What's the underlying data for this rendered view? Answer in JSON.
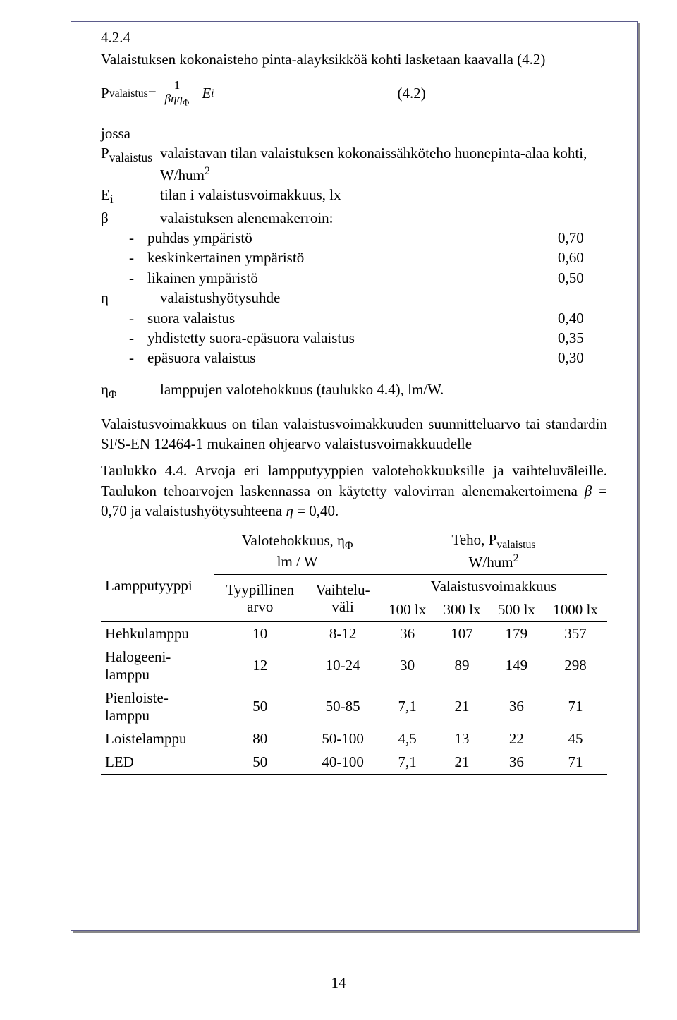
{
  "section_number": "4.2.4",
  "intro_line": "Valaistuksen kokonaisteho pinta-alayksikköä kohti lasketaan kaavalla (4.2)",
  "formula": {
    "lhs_label": "P",
    "lhs_sub": "valaistus",
    "eq": " = ",
    "frac_num": "1",
    "frac_den": "βηη",
    "frac_den_sub": "Φ",
    "rhs_sym": "E",
    "rhs_sub": "i",
    "eq_number": "(4.2)"
  },
  "defs": {
    "jossa": "jossa",
    "rows": [
      {
        "sym_html": "P<sub>valaistus</sub>",
        "desc": "valaistavan tilan valaistuksen kokonaissähköteho huonepinta-alaa kohti, W/hum",
        "sup": "2"
      },
      {
        "sym_html": "E<sub>i</sub>",
        "desc": "tilan i valaistusvoimakkuus, lx"
      },
      {
        "sym_html": "β",
        "desc": "valaistuksen alenemakerroin:"
      }
    ],
    "beta_items": [
      {
        "label": "puhdas ympäristö",
        "val": "0,70"
      },
      {
        "label": "keskinkertainen ympäristö",
        "val": "0,60"
      },
      {
        "label": "likainen ympäristö",
        "val": "0,50"
      }
    ],
    "eta_row": {
      "sym": "η",
      "desc": "valaistushyötysuhde"
    },
    "eta_items": [
      {
        "label": "suora valaistus",
        "val": "0,40"
      },
      {
        "label": "yhdistetty suora-epäsuora valaistus",
        "val": "0,35"
      },
      {
        "label": "epäsuora valaistus",
        "val": "0,30"
      }
    ]
  },
  "eta_phi": {
    "sym": "η",
    "sub": "Φ",
    "desc": "lamppujen valotehokkuus (taulukko 4.4), lm/W."
  },
  "para_voimakkuus": "Valaistusvoimakkuus on tilan valaistusvoimakkuuden suunnitteluarvo tai standardin SFS-EN 12464-1 mukainen ohjearvo valaistusvoimakkuudelle",
  "table_caption_a": "Taulukko 4.4. Arvoja eri lampputyyppien valotehokkuuksille ja vaihteluväleille. Taulukon tehoarvojen laskennassa on käytetty valovirran alenemakertoimena ",
  "table_caption_b": " = 0,70 ja valaistushyötysuhteena ",
  "table_caption_c": " = 0,40.",
  "beta_sym": "β",
  "eta_sym": "η",
  "table": {
    "h_valoteho": "Valotehokkuus, η",
    "h_valoteho_sub": "Φ",
    "h_lmw": "lm / W",
    "h_teho": "Teho, P",
    "h_teho_sub": "valaistus",
    "h_whum": "W/hum",
    "h_whum_sup": "2",
    "h_lamppu": "Lampputyyppi",
    "h_voimakkuus": "Valaistusvoimakkuus",
    "h_tyyp": "Tyypillinen arvo",
    "h_vaihtelu": "Vaihtelu-väli",
    "lux_cols": [
      "100 lx",
      "300 lx",
      "500 lx",
      "1000 lx"
    ],
    "rows": [
      {
        "name": "Hehkulamppu",
        "typ": "10",
        "range": "8-12",
        "v": [
          "36",
          "107",
          "179",
          "357"
        ]
      },
      {
        "name": "Halogeeni-lamppu",
        "typ": "12",
        "range": "10-24",
        "v": [
          "30",
          "89",
          "149",
          "298"
        ]
      },
      {
        "name": "Pienloiste-lamppu",
        "typ": "50",
        "range": "50-85",
        "v": [
          "7,1",
          "21",
          "36",
          "71"
        ]
      },
      {
        "name": "Loistelamppu",
        "typ": "80",
        "range": "50-100",
        "v": [
          "4,5",
          "13",
          "22",
          "45"
        ]
      },
      {
        "name": "LED",
        "typ": "50",
        "range": "40-100",
        "v": [
          "7,1",
          "21",
          "36",
          "71"
        ]
      }
    ]
  },
  "page_number": "14"
}
